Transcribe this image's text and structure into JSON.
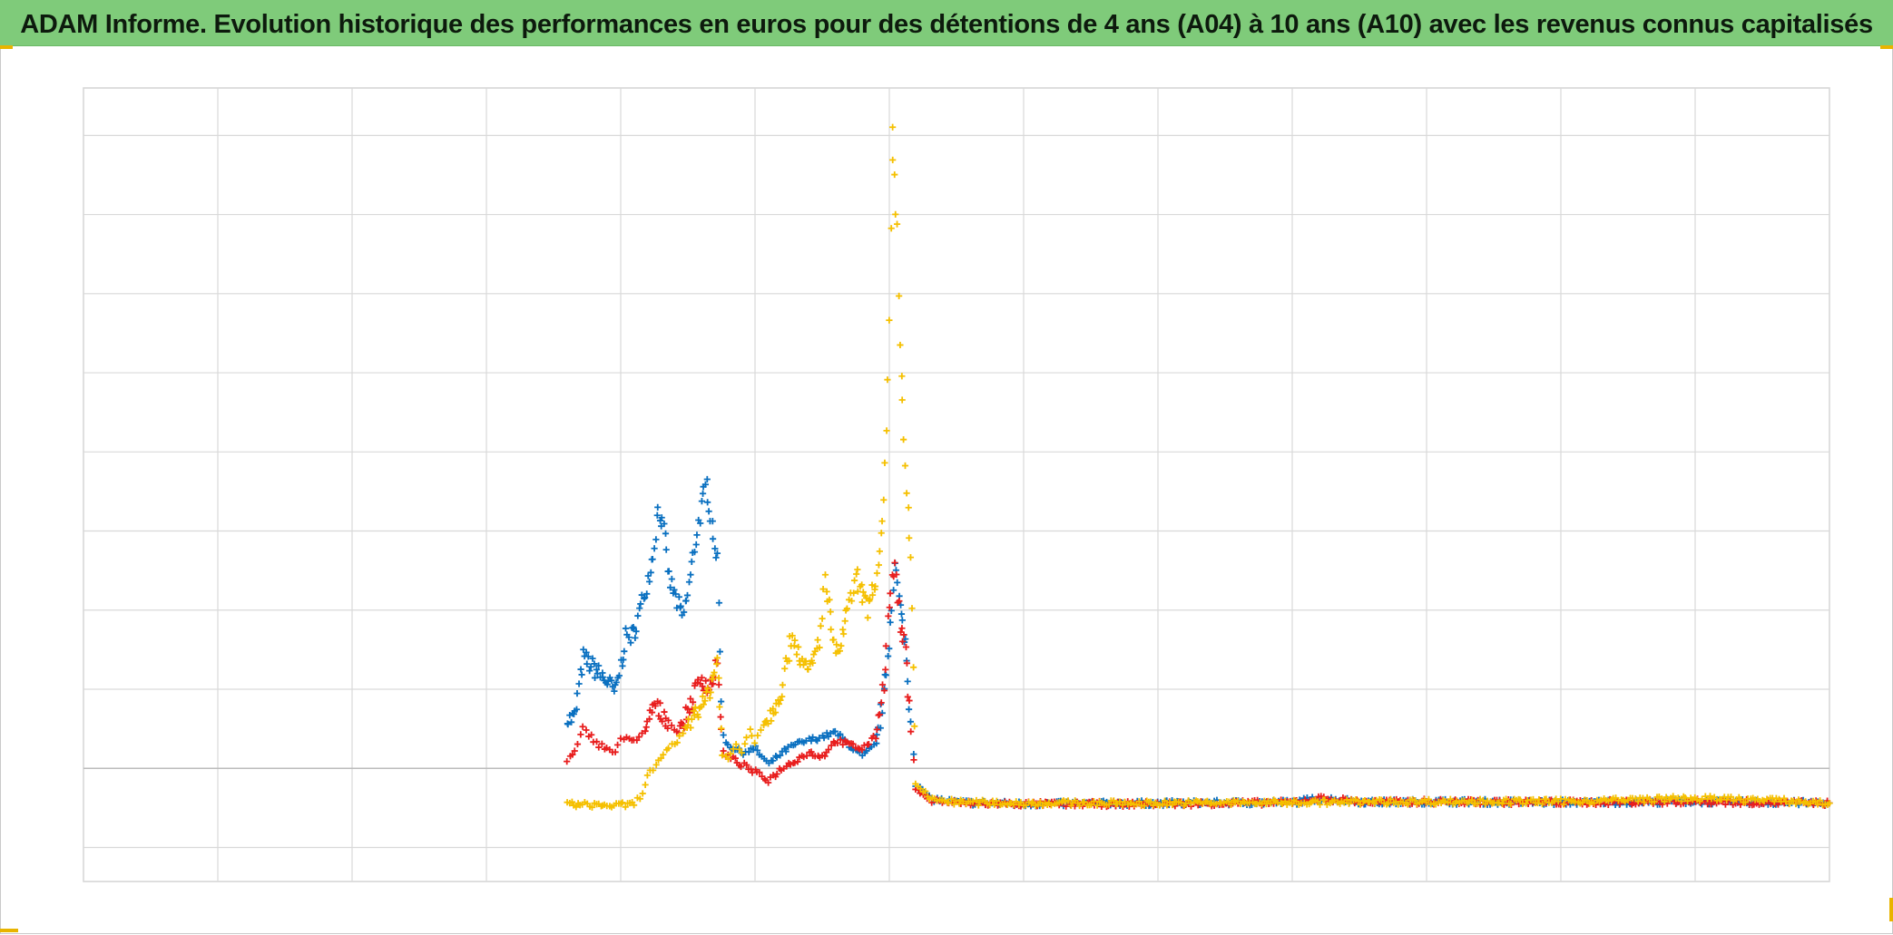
{
  "header": {
    "title": "ADAM Informe. Evolution historique des performances en euros pour des détentions de 4 ans (A04) à 10 ans (A10) avec les revenus connus capitalisés",
    "background_color": "#7fcb7a"
  },
  "chart_data": {
    "type": "scatter",
    "title": "ADAM Informe. Evolution historique des performances en euros pour des détentions de 4 ans (A04) à 10 ans (A10) avec les revenus connus capitalisés",
    "xlabel": "",
    "ylabel": "",
    "xlim": [
      0,
      13
    ],
    "ylim": [
      -1.43,
      8.6
    ],
    "grid": true,
    "legend": "none",
    "marker": "plus",
    "zero_line_y": 0,
    "series": [
      {
        "color": "#0a70c0",
        "points": [
          [
            3.6,
            0.6
          ],
          [
            3.66,
            0.65
          ],
          [
            3.72,
            1.4
          ],
          [
            3.78,
            1.3
          ],
          [
            3.84,
            1.2
          ],
          [
            3.9,
            1.1
          ],
          [
            3.96,
            0.95
          ],
          [
            4.0,
            1.3
          ],
          [
            4.04,
            1.65
          ],
          [
            4.1,
            1.7
          ],
          [
            4.16,
            2.1
          ],
          [
            4.2,
            2.4
          ],
          [
            4.24,
            2.7
          ],
          [
            4.28,
            3.3
          ],
          [
            4.32,
            3.0
          ],
          [
            4.36,
            2.4
          ],
          [
            4.4,
            2.2
          ],
          [
            4.46,
            1.9
          ],
          [
            4.5,
            2.2
          ],
          [
            4.56,
            2.9
          ],
          [
            4.6,
            3.3
          ],
          [
            4.64,
            3.6
          ],
          [
            4.68,
            3.1
          ],
          [
            4.72,
            2.6
          ],
          [
            4.76,
            0.4
          ],
          [
            4.8,
            0.3
          ],
          [
            4.9,
            0.2
          ],
          [
            5.0,
            0.25
          ],
          [
            5.1,
            0.05
          ],
          [
            5.2,
            0.2
          ],
          [
            5.3,
            0.3
          ],
          [
            5.4,
            0.35
          ],
          [
            5.5,
            0.4
          ],
          [
            5.6,
            0.45
          ],
          [
            5.7,
            0.3
          ],
          [
            5.8,
            0.15
          ],
          [
            5.9,
            0.3
          ],
          [
            5.96,
            0.9
          ],
          [
            6.0,
            1.6
          ],
          [
            6.04,
            2.6
          ],
          [
            6.08,
            2.0
          ],
          [
            6.12,
            1.6
          ],
          [
            6.16,
            0.6
          ],
          [
            6.2,
            -0.2
          ],
          [
            6.3,
            -0.38
          ],
          [
            6.5,
            -0.43
          ],
          [
            7.0,
            -0.45
          ],
          [
            8.0,
            -0.44
          ],
          [
            9.0,
            -0.43
          ],
          [
            9.2,
            -0.38
          ],
          [
            9.6,
            -0.43
          ],
          [
            10.0,
            -0.42
          ],
          [
            11.0,
            -0.43
          ],
          [
            12.0,
            -0.42
          ],
          [
            13.0,
            -0.44
          ]
        ]
      },
      {
        "color": "#e81e1e",
        "points": [
          [
            3.6,
            0.1
          ],
          [
            3.66,
            0.2
          ],
          [
            3.72,
            0.5
          ],
          [
            3.78,
            0.4
          ],
          [
            3.84,
            0.3
          ],
          [
            3.9,
            0.25
          ],
          [
            3.96,
            0.2
          ],
          [
            4.0,
            0.35
          ],
          [
            4.06,
            0.4
          ],
          [
            4.12,
            0.35
          ],
          [
            4.18,
            0.45
          ],
          [
            4.24,
            0.8
          ],
          [
            4.3,
            0.7
          ],
          [
            4.36,
            0.6
          ],
          [
            4.42,
            0.45
          ],
          [
            4.48,
            0.65
          ],
          [
            4.54,
            0.9
          ],
          [
            4.6,
            1.15
          ],
          [
            4.66,
            1.0
          ],
          [
            4.72,
            1.3
          ],
          [
            4.76,
            0.2
          ],
          [
            4.8,
            0.15
          ],
          [
            4.9,
            0.05
          ],
          [
            5.0,
            -0.05
          ],
          [
            5.1,
            -0.15
          ],
          [
            5.2,
            0.0
          ],
          [
            5.3,
            0.1
          ],
          [
            5.4,
            0.2
          ],
          [
            5.5,
            0.15
          ],
          [
            5.6,
            0.35
          ],
          [
            5.7,
            0.3
          ],
          [
            5.8,
            0.25
          ],
          [
            5.9,
            0.4
          ],
          [
            5.96,
            1.1
          ],
          [
            6.0,
            2.1
          ],
          [
            6.04,
            2.6
          ],
          [
            6.08,
            1.8
          ],
          [
            6.12,
            1.5
          ],
          [
            6.16,
            0.5
          ],
          [
            6.2,
            -0.25
          ],
          [
            6.3,
            -0.4
          ],
          [
            6.5,
            -0.44
          ],
          [
            7.0,
            -0.45
          ],
          [
            8.0,
            -0.45
          ],
          [
            9.0,
            -0.43
          ],
          [
            9.2,
            -0.38
          ],
          [
            9.6,
            -0.43
          ],
          [
            10.0,
            -0.42
          ],
          [
            11.0,
            -0.43
          ],
          [
            12.0,
            -0.42
          ],
          [
            13.0,
            -0.44
          ]
        ]
      },
      {
        "color": "#f5c000",
        "points": [
          [
            3.6,
            -0.45
          ],
          [
            3.7,
            -0.46
          ],
          [
            3.8,
            -0.46
          ],
          [
            3.9,
            -0.47
          ],
          [
            4.0,
            -0.47
          ],
          [
            4.1,
            -0.45
          ],
          [
            4.16,
            -0.3
          ],
          [
            4.2,
            -0.1
          ],
          [
            4.26,
            0.05
          ],
          [
            4.3,
            0.1
          ],
          [
            4.36,
            0.25
          ],
          [
            4.42,
            0.35
          ],
          [
            4.48,
            0.5
          ],
          [
            4.56,
            0.75
          ],
          [
            4.62,
            0.8
          ],
          [
            4.68,
            1.1
          ],
          [
            4.72,
            1.4
          ],
          [
            4.76,
            0.2
          ],
          [
            4.8,
            0.1
          ],
          [
            4.86,
            0.3
          ],
          [
            4.9,
            0.2
          ],
          [
            4.96,
            0.5
          ],
          [
            5.0,
            0.35
          ],
          [
            5.04,
            0.5
          ],
          [
            5.08,
            0.6
          ],
          [
            5.12,
            0.7
          ],
          [
            5.16,
            0.85
          ],
          [
            5.2,
            1.0
          ],
          [
            5.24,
            1.4
          ],
          [
            5.28,
            1.7
          ],
          [
            5.32,
            1.5
          ],
          [
            5.36,
            1.3
          ],
          [
            5.4,
            1.2
          ],
          [
            5.44,
            1.4
          ],
          [
            5.48,
            1.6
          ],
          [
            5.52,
            2.4
          ],
          [
            5.56,
            1.9
          ],
          [
            5.6,
            1.4
          ],
          [
            5.64,
            1.6
          ],
          [
            5.68,
            1.9
          ],
          [
            5.72,
            2.2
          ],
          [
            5.76,
            2.4
          ],
          [
            5.8,
            2.2
          ],
          [
            5.84,
            2.0
          ],
          [
            5.88,
            2.3
          ],
          [
            5.92,
            2.5
          ],
          [
            5.96,
            3.3
          ],
          [
            5.98,
            4.2
          ],
          [
            6.0,
            5.6
          ],
          [
            6.02,
            8.0
          ],
          [
            6.04,
            7.4
          ],
          [
            6.06,
            6.8
          ],
          [
            6.08,
            5.3
          ],
          [
            6.1,
            4.6
          ],
          [
            6.12,
            3.9
          ],
          [
            6.14,
            3.2
          ],
          [
            6.16,
            2.7
          ],
          [
            6.18,
            1.2
          ],
          [
            6.2,
            -0.2
          ],
          [
            6.3,
            -0.38
          ],
          [
            6.5,
            -0.43
          ],
          [
            7.0,
            -0.44
          ],
          [
            8.0,
            -0.44
          ],
          [
            9.0,
            -0.43
          ],
          [
            10.0,
            -0.42
          ],
          [
            11.0,
            -0.42
          ],
          [
            11.5,
            -0.4
          ],
          [
            12.0,
            -0.38
          ],
          [
            12.5,
            -0.4
          ],
          [
            13.0,
            -0.44
          ]
        ]
      }
    ]
  }
}
